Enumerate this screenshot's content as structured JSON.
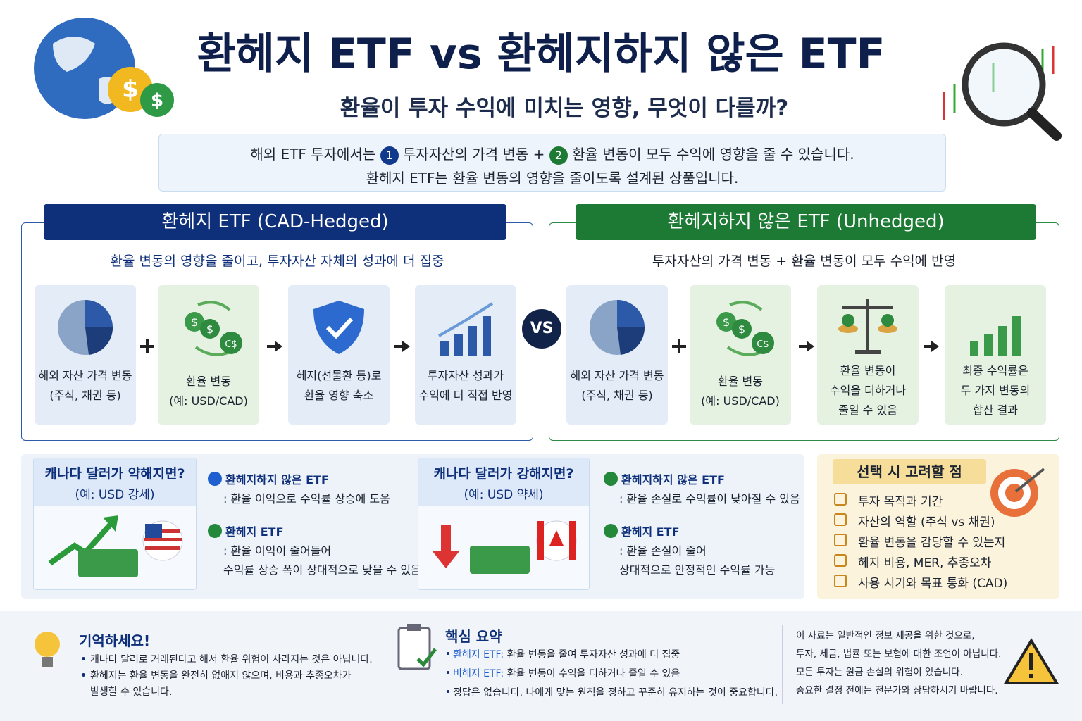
{
  "header": {
    "title": "환헤지 ETF vs 환헤지하지 않은 ETF",
    "subtitle": "환율이 투자 수익에 미치는 영향, 무엇이 다를까?"
  },
  "intro": {
    "line1_a": "해외 ETF 투자에서는",
    "badge1": "1",
    "line1_b": "투자자산의 가격 변동",
    "plus": "+",
    "badge2": "2",
    "line1_c": "환율 변동이 모두 수익에 영향을 줄 수 있습니다.",
    "line2": "환헤지 ETF는 환율 변동의 영향을 줄이도록 설계된 상품입니다."
  },
  "hedged": {
    "title": "환헤지 ETF (CAD-Hedged)",
    "subtitle": "환율 변동의 영향을 줄이고, 투자자산 자체의 성과에 더 집중",
    "steps": [
      [
        "해외 자산 가격 변동",
        "(주식, 채권 등)"
      ],
      [
        "환율 변동",
        "(예: USD/CAD)"
      ],
      [
        "헤지(선물환 등)로",
        "환율 영향 축소"
      ],
      [
        "투자자산 성과가",
        "수익에 더 직접 반영"
      ]
    ]
  },
  "vs": "VS",
  "unhedged": {
    "title": "환헤지하지 않은 ETF (Unhedged)",
    "subtitle": "투자자산의 가격 변동 + 환율 변동이 모두 수익에 반영",
    "steps": [
      [
        "해외 자산 가격 변동",
        "(주식, 채권 등)"
      ],
      [
        "환율 변동",
        "(예: USD/CAD)"
      ],
      [
        "환율 변동이",
        "수익을 더하거나",
        "줄일 수 있음"
      ],
      [
        "최종 수익률은",
        "두 가지 변동의",
        "합산 결과"
      ]
    ]
  },
  "scenarios": [
    {
      "title": "캐나다 달러가 약해지면?",
      "example": "(예: USD 강세)",
      "points": [
        {
          "name": "환헤지하지 않은 ETF",
          "lines": [
            ": 환율 이익으로 수익률 상승에 도움"
          ]
        },
        {
          "name": "환헤지 ETF",
          "lines": [
            ": 환율 이익이 줄어들어",
            "수익률 상승 폭이 상대적으로 낮을 수 있음"
          ]
        }
      ]
    },
    {
      "title": "캐나다 달러가 강해지면?",
      "example": "(예: USD 약세)",
      "points": [
        {
          "name": "환헤지하지 않은 ETF",
          "lines": [
            ": 환율 손실로 수익률이 낮아질 수 있음"
          ]
        },
        {
          "name": "환헤지 ETF",
          "lines": [
            ": 환율 손실이 줄어",
            "상대적으로 안정적인 수익률 가능"
          ]
        }
      ]
    }
  ],
  "considerations": {
    "title": "선택 시 고려할 점",
    "items": [
      "투자 목적과 기간",
      "자산의 역할 (주식 vs 채권)",
      "환율 변동을 감당할 수 있는지",
      "헤지 비용, MER, 추종오차",
      "사용 시기와 목표 통화 (CAD)"
    ]
  },
  "footer": {
    "remember": {
      "title": "기억하세요!",
      "items": [
        [
          "캐나다 달러로 거래된다고 해서 환율 위험이 사라지는 것은 아닙니다."
        ],
        [
          "환헤지는 환율 변동을 완전히 없애지 않으며, 비용과 추종오차가",
          "발생할 수 있습니다."
        ]
      ]
    },
    "summary": {
      "title": "핵심 요약",
      "items": [
        {
          "label": "환헤지 ETF:",
          "text": "환율 변동을 줄여 투자자산 성과에 더 집중"
        },
        {
          "label": "비헤지 ETF:",
          "text": "환율 변동이 수익을 더하거나 줄일 수 있음"
        },
        {
          "label": "",
          "text": "정답은 없습니다. 나에게 맞는 원칙을 정하고 꾸준히 유지하는 것이 중요합니다."
        }
      ]
    },
    "disclaimer": [
      "이 자료는 일반적인 정보 제공을 위한 것으로,",
      "투자, 세금, 법률 또는 보험에 대한 조언이 아닙니다.",
      "모든 투자는 원금 손실의 위험이 있습니다.",
      "중요한 결정 전에는 전문가와 상담하시기 바랍니다."
    ]
  }
}
